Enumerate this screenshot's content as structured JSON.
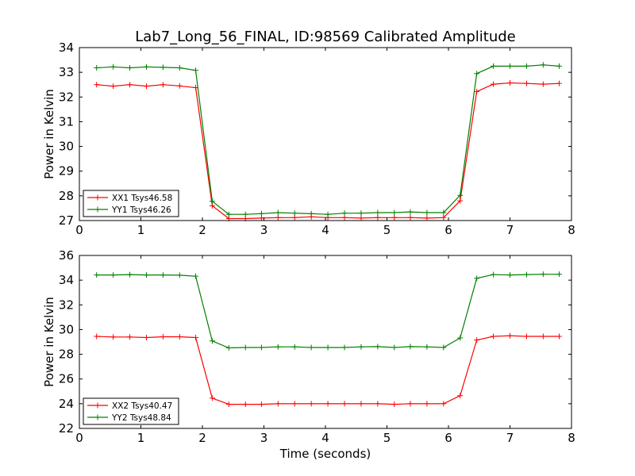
{
  "title": "Lab7_Long_56_FINAL, ID:98569 Calibrated Amplitude",
  "chart_data": [
    {
      "type": "line",
      "xlabel": "",
      "ylabel": "Power in Kelvin",
      "xlim": [
        0,
        8
      ],
      "ylim": [
        27,
        34
      ],
      "xticks": [
        0,
        1,
        2,
        3,
        4,
        5,
        6,
        7,
        8
      ],
      "yticks": [
        27,
        28,
        29,
        30,
        31,
        32,
        33,
        34
      ],
      "legend_position": "lower-left",
      "x": [
        0.28,
        0.55,
        0.82,
        1.09,
        1.36,
        1.63,
        1.89,
        2.16,
        2.43,
        2.7,
        2.96,
        3.23,
        3.5,
        3.77,
        4.04,
        4.31,
        4.58,
        4.85,
        5.12,
        5.38,
        5.65,
        5.92,
        6.19,
        6.46,
        6.73,
        7.0,
        7.27,
        7.54,
        7.8
      ],
      "series": [
        {
          "name": "XX1 Tsys46.58",
          "color": "#ff0000",
          "values": [
            32.5,
            32.44,
            32.5,
            32.44,
            32.5,
            32.45,
            32.38,
            27.6,
            27.08,
            27.08,
            27.1,
            27.12,
            27.12,
            27.15,
            27.12,
            27.12,
            27.1,
            27.12,
            27.12,
            27.12,
            27.1,
            27.12,
            27.8,
            32.22,
            32.52,
            32.57,
            32.55,
            32.52,
            32.55
          ]
        },
        {
          "name": "YY1 Tsys46.26",
          "color": "#008000",
          "values": [
            33.18,
            33.22,
            33.18,
            33.22,
            33.2,
            33.18,
            33.08,
            27.78,
            27.25,
            27.25,
            27.28,
            27.32,
            27.3,
            27.28,
            27.25,
            27.3,
            27.3,
            27.32,
            27.32,
            27.35,
            27.32,
            27.32,
            28.02,
            32.95,
            33.25,
            33.25,
            33.25,
            33.3,
            33.25
          ]
        }
      ]
    },
    {
      "type": "line",
      "xlabel": "Time (seconds)",
      "ylabel": "Power in Kelvin",
      "xlim": [
        0,
        8
      ],
      "ylim": [
        22,
        36
      ],
      "xticks": [
        0,
        1,
        2,
        3,
        4,
        5,
        6,
        7,
        8
      ],
      "yticks": [
        22,
        24,
        26,
        28,
        30,
        32,
        34,
        36
      ],
      "legend_position": "lower-left",
      "x": [
        0.28,
        0.55,
        0.82,
        1.09,
        1.36,
        1.63,
        1.89,
        2.16,
        2.43,
        2.7,
        2.96,
        3.23,
        3.5,
        3.77,
        4.04,
        4.31,
        4.58,
        4.85,
        5.12,
        5.38,
        5.65,
        5.92,
        6.19,
        6.46,
        6.73,
        7.0,
        7.27,
        7.54,
        7.8
      ],
      "series": [
        {
          "name": "XX2 Tsys40.47",
          "color": "#ff0000",
          "values": [
            29.45,
            29.4,
            29.4,
            29.35,
            29.42,
            29.42,
            29.35,
            24.45,
            23.95,
            23.95,
            23.95,
            24.0,
            24.0,
            24.0,
            24.0,
            24.0,
            24.0,
            24.0,
            23.95,
            24.0,
            24.0,
            24.0,
            24.65,
            29.15,
            29.45,
            29.5,
            29.45,
            29.45,
            29.45
          ]
        },
        {
          "name": "YY2 Tsys48.84",
          "color": "#008000",
          "values": [
            34.42,
            34.42,
            34.45,
            34.42,
            34.42,
            34.4,
            34.32,
            29.08,
            28.52,
            28.55,
            28.55,
            28.6,
            28.6,
            28.55,
            28.55,
            28.55,
            28.6,
            28.62,
            28.55,
            28.62,
            28.6,
            28.55,
            29.32,
            34.15,
            34.45,
            34.42,
            34.45,
            34.48,
            34.48
          ]
        }
      ]
    }
  ]
}
